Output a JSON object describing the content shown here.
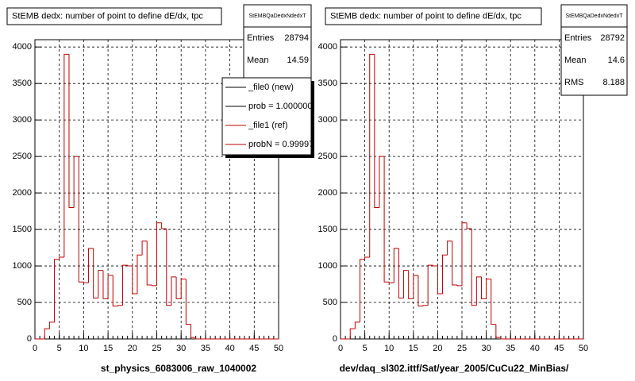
{
  "chart_data": [
    {
      "type": "histogram",
      "title": "StEMB dedx: number of point to define dE/dx, tpc",
      "xlabel": "st_physics_6083006_raw_1040002",
      "bins": [
        0,
        1,
        2,
        3,
        4,
        5,
        6,
        7,
        8,
        9,
        10,
        11,
        12,
        13,
        14,
        15,
        16,
        17,
        18,
        19,
        20,
        21,
        22,
        23,
        24,
        25,
        26,
        27,
        28,
        29,
        30,
        31,
        32,
        33,
        34,
        35,
        36,
        37,
        38,
        39,
        40,
        41,
        42,
        43,
        44,
        45,
        46,
        47,
        48,
        49,
        50
      ],
      "values": [
        0,
        0,
        140,
        230,
        1090,
        1120,
        3900,
        1800,
        2500,
        780,
        770,
        1240,
        560,
        940,
        550,
        870,
        450,
        460,
        1010,
        1000,
        620,
        1150,
        1340,
        740,
        730,
        1590,
        1510,
        460,
        850,
        550,
        820,
        200,
        20,
        0,
        0,
        0,
        0,
        0,
        0,
        0,
        0,
        0,
        0,
        0,
        0,
        0,
        0,
        0,
        0,
        0
      ],
      "color": "#c00000",
      "xlim": [
        0,
        50
      ],
      "xticks": [
        0,
        5,
        10,
        15,
        20,
        25,
        30,
        35,
        40,
        45,
        50
      ],
      "ylim": [
        0,
        4100
      ],
      "yticks": [
        0,
        500,
        1000,
        1500,
        2000,
        2500,
        3000,
        3500,
        4000
      ],
      "grid": true,
      "stats": {
        "title": "StEMBQaDedxNdedxT",
        "rows": [
          {
            "label": "Entries",
            "value": 28794
          },
          {
            "label": "Mean",
            "value": 14.59
          }
        ]
      },
      "legend": [
        {
          "label": "_file0 (new)",
          "color": "#000000"
        },
        {
          "label": "prob = 1.000000",
          "color": "#000000"
        },
        {
          "label": "_file1 (ref)",
          "color": "#c00000"
        },
        {
          "label": "probN = 0.99997",
          "color": "#c00000"
        }
      ]
    },
    {
      "type": "histogram",
      "title": "StEMB dedx: number of point to define dE/dx, tpc",
      "xlabel": "dev/daq_sl302.ittf/Sat/year_2005/CuCu22_MinBias/",
      "bins": [
        0,
        1,
        2,
        3,
        4,
        5,
        6,
        7,
        8,
        9,
        10,
        11,
        12,
        13,
        14,
        15,
        16,
        17,
        18,
        19,
        20,
        21,
        22,
        23,
        24,
        25,
        26,
        27,
        28,
        29,
        30,
        31,
        32,
        33,
        34,
        35,
        36,
        37,
        38,
        39,
        40,
        41,
        42,
        43,
        44,
        45,
        46,
        47,
        48,
        49,
        50
      ],
      "values": [
        0,
        0,
        140,
        230,
        1090,
        1120,
        3900,
        1800,
        2500,
        780,
        770,
        1240,
        560,
        940,
        550,
        870,
        450,
        460,
        1010,
        1000,
        620,
        1150,
        1340,
        740,
        730,
        1590,
        1510,
        460,
        850,
        550,
        820,
        200,
        20,
        0,
        0,
        0,
        0,
        0,
        0,
        0,
        0,
        0,
        0,
        0,
        0,
        0,
        0,
        0,
        0,
        0
      ],
      "color": "#c00000",
      "xlim": [
        0,
        50
      ],
      "xticks": [
        0,
        5,
        10,
        15,
        20,
        25,
        30,
        35,
        40,
        45,
        50
      ],
      "ylim": [
        0,
        4100
      ],
      "yticks": [
        0,
        500,
        1000,
        1500,
        2000,
        2500,
        3000,
        3500,
        4000
      ],
      "grid": true,
      "stats": {
        "title": "StEMBQaDedxNdedxT",
        "rows": [
          {
            "label": "Entries",
            "value": 28792
          },
          {
            "label": "Mean",
            "value": 14.6
          },
          {
            "label": "RMS",
            "value": 8.188
          }
        ]
      }
    }
  ]
}
